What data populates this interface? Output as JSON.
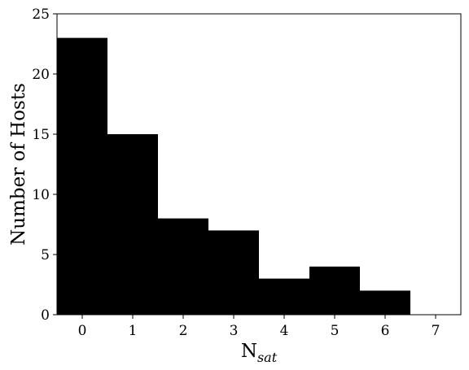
{
  "chart_data": {
    "type": "bar",
    "categories": [
      "0",
      "1",
      "2",
      "3",
      "4",
      "5",
      "6",
      "7"
    ],
    "values": [
      23,
      15,
      8,
      7,
      3,
      4,
      2,
      0
    ],
    "xlabel": "N",
    "xlabel_subscript": "sat",
    "ylabel": "Number of Hosts",
    "ylim": [
      0,
      25
    ],
    "xlim": [
      -0.5,
      7.5
    ],
    "yticks": [
      "0",
      "5",
      "10",
      "15",
      "20",
      "25"
    ],
    "grid": false,
    "bar_color": "#000000"
  }
}
